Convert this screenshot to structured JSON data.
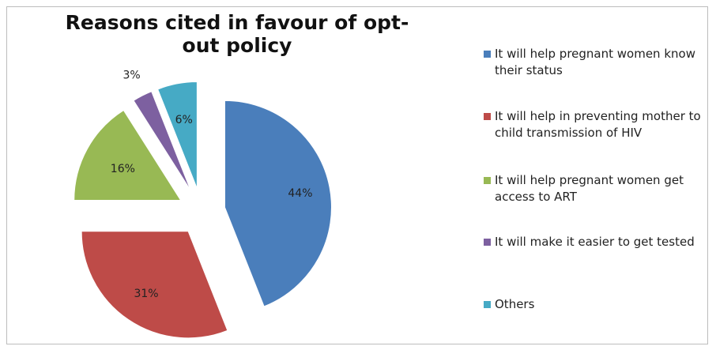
{
  "chart_data": {
    "type": "pie",
    "title": "Reasons cited in favour of opt-out policy",
    "legend_position": "right",
    "exploded": true,
    "slices": [
      {
        "label": "It will help pregnant women know their status",
        "value": 44,
        "display": "44%",
        "color": "#4a7ebb"
      },
      {
        "label": "It will help in preventing mother to child transmission of HIV",
        "value": 31,
        "display": "31%",
        "color": "#be4b48"
      },
      {
        "label": "It will help pregnant women get access to ART",
        "value": 16,
        "display": "16%",
        "color": "#98b954"
      },
      {
        "label": "It will make it easier to get tested",
        "value": 3,
        "display": "3%",
        "color": "#7d60a0"
      },
      {
        "label": "Others",
        "value": 6,
        "display": "6%",
        "color": "#46aac5"
      }
    ]
  }
}
